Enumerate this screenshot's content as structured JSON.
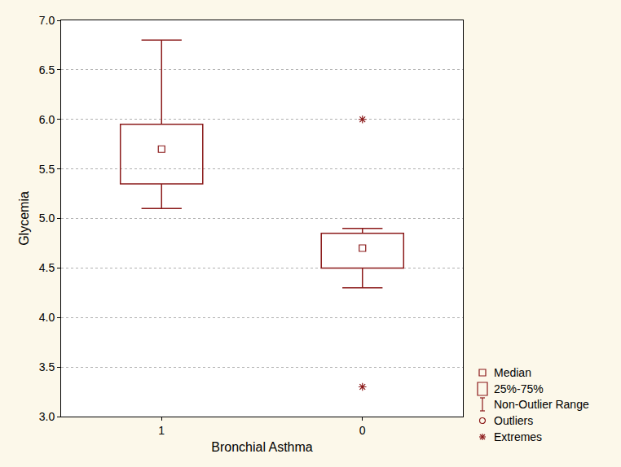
{
  "chart_data": {
    "type": "box",
    "x_label": "Bronchial Asthma",
    "y_label": "Glycemia",
    "categories": [
      "1",
      "0"
    ],
    "median": [
      5.7,
      4.7
    ],
    "q1": [
      5.35,
      4.5
    ],
    "q3": [
      5.95,
      4.85
    ],
    "whisker_low": [
      5.1,
      4.3
    ],
    "whisker_high": [
      6.8,
      4.9
    ],
    "outliers": [
      [],
      []
    ],
    "extremes": [
      [],
      [
        6.0,
        3.3
      ]
    ],
    "ylim": [
      3.0,
      7.0
    ],
    "yticks": [
      {
        "value": 3,
        "label": "3.0"
      },
      3.5,
      {
        "value": 4,
        "label": "4.0"
      },
      4.5,
      {
        "value": 5,
        "label": "5.0"
      },
      5.5,
      {
        "value": 6,
        "label": "6.0"
      },
      6.5,
      {
        "value": 7,
        "label": "7.0"
      }
    ],
    "legend_items": [
      "Median",
      "25%-75%",
      "Non-Outlier Range",
      "Outliers",
      "Extremes"
    ],
    "color": "#8b1a1a",
    "grid": true
  }
}
